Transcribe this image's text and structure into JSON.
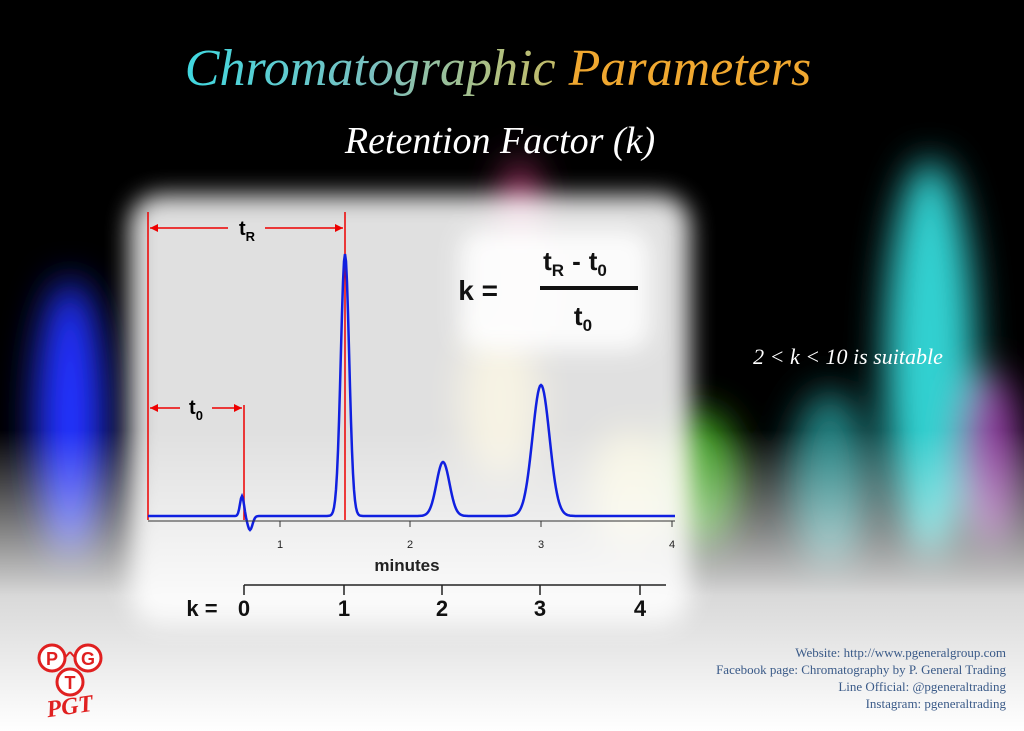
{
  "header": {
    "title_left": "Chromatographic",
    "title_right": "Parameters",
    "subtitle": "Retention Factor (k)"
  },
  "diagram": {
    "t_r": {
      "base": "t",
      "sub": "R"
    },
    "t_0": {
      "base": "t",
      "sub": "0"
    },
    "formula": {
      "lhs": "k =",
      "numerator": {
        "t1": "t",
        "s1": "R",
        "op": "-",
        "t2": "t",
        "s2": "0"
      },
      "denominator": {
        "t": "t",
        "s": "0"
      }
    },
    "time_ticks": [
      "1",
      "2",
      "3",
      "4"
    ],
    "time_label": "minutes",
    "k_scale": {
      "label": "k =",
      "ticks": [
        "0",
        "1",
        "2",
        "3",
        "4"
      ]
    }
  },
  "note": "2 < k < 10  is suitable",
  "footer": [
    "Website: http://www.pgeneralgroup.com",
    "Facebook page: Chromatography by P. General Trading",
    "Line Official: @pgeneraltrading",
    "Instagram: pgeneraltrading"
  ],
  "logo": {
    "letters": [
      "P",
      "G",
      "T"
    ],
    "wordmark": "PGT"
  }
}
